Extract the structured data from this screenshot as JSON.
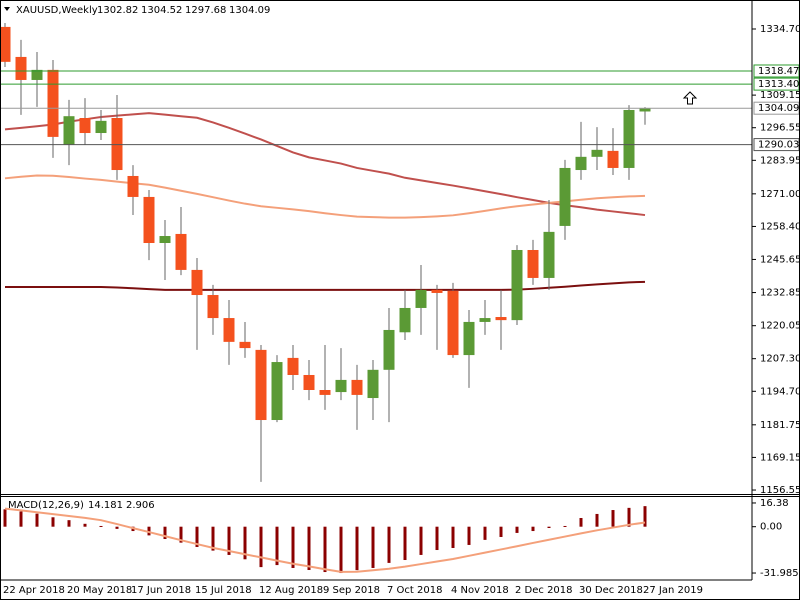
{
  "chart_data": [
    {
      "type": "candlestick",
      "title": "XAUUSD,Weekly",
      "categories": [
        "22 Apr 2018",
        null,
        null,
        null,
        "20 May 2018",
        null,
        null,
        null,
        "17 Jun 2018",
        null,
        null,
        null,
        "15 Jul 2018",
        null,
        null,
        null,
        "12 Aug 2018",
        null,
        null,
        null,
        "9 Sep 2018",
        null,
        null,
        null,
        "7 Oct 2018",
        null,
        null,
        null,
        "4 Nov 2018",
        null,
        null,
        null,
        "2 Dec 2018",
        null,
        null,
        null,
        "30 Dec 2018",
        null,
        null,
        null,
        "27 Jan 2019"
      ],
      "open": [
        1335.5,
        1323.9,
        1315.0,
        1318.9,
        1290.0,
        1300.3,
        1294.5,
        1300.3,
        1277.9,
        1269.8,
        1252.0,
        1255.5,
        1241.6,
        1231.9,
        1223.0,
        1213.8,
        1210.7,
        1183.6,
        1207.6,
        1201.0,
        1195.2,
        1194.4,
        1199.1,
        1192.1,
        1203.0,
        1217.5,
        1226.9,
        1233.9,
        1233.5,
        1208.7,
        1221.5,
        1223.4,
        1222.2,
        1249.3,
        1238.5,
        1258.6,
        1280.2,
        1285.3,
        1287.6,
        1281.0,
        1302.82
      ],
      "high": [
        1337.0,
        1330.5,
        1325.8,
        1322.7,
        1307.3,
        1308.0,
        1303.4,
        1309.2,
        1282.1,
        1272.5,
        1260.9,
        1265.9,
        1246.2,
        1235.8,
        1230.0,
        1221.5,
        1212.6,
        1208.7,
        1212.6,
        1206.8,
        1212.6,
        1211.4,
        1204.9,
        1206.8,
        1226.9,
        1233.9,
        1243.5,
        1235.8,
        1236.6,
        1226.1,
        1230.0,
        1233.9,
        1251.2,
        1253.2,
        1268.6,
        1284.1,
        1298.8,
        1296.8,
        1296.4,
        1305.3,
        1304.52
      ],
      "low": [
        1320.0,
        1301.5,
        1304.6,
        1284.9,
        1282.1,
        1289.9,
        1291.8,
        1276.4,
        1262.8,
        1245.4,
        1237.7,
        1239.6,
        1210.7,
        1216.5,
        1204.9,
        1207.6,
        1159.7,
        1182.8,
        1195.2,
        1191.3,
        1187.5,
        1191.3,
        1179.8,
        1183.6,
        1182.8,
        1214.5,
        1216.5,
        1210.7,
        1207.6,
        1196.0,
        1216.5,
        1210.7,
        1220.3,
        1235.8,
        1233.9,
        1253.2,
        1276.4,
        1280.2,
        1278.3,
        1276.4,
        1297.68
      ],
      "close": [
        1322.0,
        1315.0,
        1318.9,
        1293.0,
        1301.0,
        1294.5,
        1299.2,
        1280.2,
        1269.8,
        1252.0,
        1254.7,
        1241.6,
        1231.9,
        1223.0,
        1213.8,
        1211.4,
        1183.6,
        1206.0,
        1201.0,
        1195.2,
        1193.3,
        1199.1,
        1193.3,
        1203.0,
        1218.4,
        1226.9,
        1233.9,
        1232.7,
        1208.7,
        1221.5,
        1223.0,
        1222.2,
        1249.3,
        1238.5,
        1256.3,
        1281.0,
        1285.3,
        1288.0,
        1281.0,
        1303.4,
        1304.09
      ],
      "up_color": "#5b9a35",
      "down_color": "#f4511e",
      "wick_color": "#666666",
      "lines": [
        {
          "color": "#c0504d",
          "values": [
            1295.9,
            1296.5,
            1297.1,
            1297.8,
            1298.9,
            1299.8,
            1300.7,
            1301.2,
            1301.7,
            1302.2,
            1301.6,
            1301.0,
            1300.4,
            1298.6,
            1296.5,
            1294.3,
            1292.0,
            1289.5,
            1287.0,
            1285.1,
            1283.9,
            1282.7,
            1281.0,
            1279.9,
            1278.8,
            1277.2,
            1276.2,
            1275.2,
            1274.2,
            1273.1,
            1272.0,
            1270.9,
            1269.7,
            1268.6,
            1267.5,
            1266.6,
            1265.8,
            1264.9,
            1264.2,
            1263.5,
            1262.8
          ]
        },
        {
          "color": "#f4a07a",
          "values": [
            1277.0,
            1277.6,
            1278.1,
            1278.0,
            1277.5,
            1276.9,
            1276.4,
            1275.7,
            1275.1,
            1274.5,
            1273.4,
            1272.2,
            1271.0,
            1269.7,
            1268.4,
            1267.2,
            1266.2,
            1265.6,
            1265.0,
            1264.3,
            1263.5,
            1262.8,
            1262.2,
            1262.0,
            1261.8,
            1261.8,
            1262.0,
            1262.3,
            1262.7,
            1263.5,
            1264.4,
            1265.4,
            1266.2,
            1266.9,
            1267.5,
            1268.1,
            1268.7,
            1269.3,
            1269.7,
            1270.0,
            1270.2
          ]
        },
        {
          "color": "#7b0f0f",
          "values": [
            1235.0,
            1235.0,
            1235.0,
            1235.0,
            1235.0,
            1235.0,
            1235.0,
            1234.8,
            1234.5,
            1234.2,
            1233.9,
            1233.9,
            1233.9,
            1233.9,
            1233.9,
            1233.9,
            1233.9,
            1233.9,
            1233.9,
            1233.9,
            1233.9,
            1233.9,
            1233.9,
            1233.9,
            1233.9,
            1233.9,
            1233.9,
            1233.9,
            1233.9,
            1233.9,
            1233.9,
            1233.9,
            1234.0,
            1234.3,
            1234.7,
            1235.1,
            1235.6,
            1236.0,
            1236.4,
            1236.8,
            1237.0
          ]
        }
      ],
      "hlines": [
        {
          "value": 1318.47,
          "color": "#2e9b2e"
        },
        {
          "value": 1313.4,
          "label": "1313.40",
          "color": "#2e9b2e"
        },
        {
          "value": 1290.03,
          "color": "#555555"
        }
      ],
      "price_line_color": "#999999",
      "ylim": [
        1155.4,
        1345.9
      ],
      "yticks": [
        {
          "value": 1334.7,
          "label": "1334.70"
        },
        1309.15,
        1296.55,
        1283.95,
        {
          "value": 1271,
          "label": "1271.00"
        },
        {
          "value": 1258.4,
          "label": "1258.40"
        },
        1245.65,
        1232.85,
        1220.05,
        {
          "value": 1207.3,
          "label": "1207.30"
        },
        {
          "value": 1194.7,
          "label": "1194.70"
        },
        1181.75,
        1169.15,
        1156.55
      ]
    },
    {
      "type": "macd",
      "title": "MACD(12,26,9)",
      "values": [
        12.0,
        10.5,
        9.0,
        6.5,
        4.5,
        2.0,
        0.5,
        -1.5,
        -3.0,
        -6.0,
        -8.5,
        -11.0,
        -14.0,
        -16.5,
        -19.5,
        -22.5,
        -27.9,
        -26.5,
        -28.5,
        -29.9,
        -31.3,
        -31.985,
        -30.0,
        -28.5,
        -25.0,
        -23.0,
        -19.5,
        -16.1,
        -14.7,
        -12.6,
        -9.1,
        -7.1,
        -4.3,
        -3.0,
        -0.9,
        0.5,
        6.0,
        8.8,
        11.5,
        13.0,
        14.181
      ],
      "signal": [
        12.5,
        11.3,
        10.0,
        8.7,
        7.4,
        6.1,
        4.5,
        1.8,
        -1.0,
        -3.7,
        -6.5,
        -9.3,
        -12.0,
        -14.6,
        -16.8,
        -19.0,
        -21.2,
        -23.4,
        -25.6,
        -27.4,
        -29.4,
        -31.2,
        -31.1,
        -30.1,
        -29.0,
        -27.6,
        -25.8,
        -24.0,
        -22.3,
        -20.1,
        -17.9,
        -15.7,
        -13.5,
        -11.2,
        -9.0,
        -6.8,
        -4.6,
        -2.5,
        -0.6,
        1.3,
        2.906
      ],
      "color": "#8b0000",
      "signal_color": "#f4a07a",
      "ylim": [
        -36.8,
        20.5
      ],
      "yticks": [
        16.38,
        {
          "value": 0,
          "label": "0.00"
        },
        -31.985
      ]
    }
  ]
}
